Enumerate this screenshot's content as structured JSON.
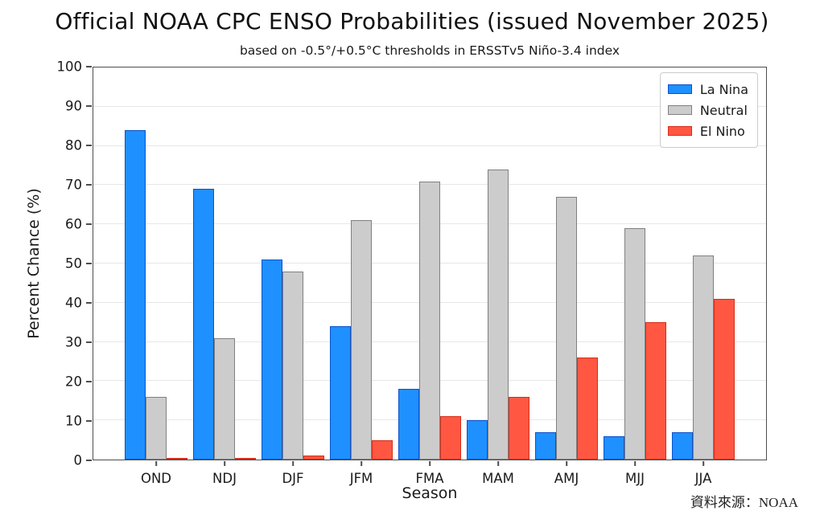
{
  "source_note": "資料來源：NOAA",
  "chart_data": {
    "type": "bar",
    "title": "Official NOAA CPC ENSO Probabilities (issued November 2025)",
    "subtitle": "based on -0.5°/+0.5°C thresholds in ERSSTv5 Niño-3.4 index",
    "xlabel": "Season",
    "ylabel": "Percent Chance (%)",
    "ylim": [
      0,
      100
    ],
    "ytick_step": 10,
    "grid": true,
    "legend_position": "upper right",
    "categories": [
      "OND",
      "NDJ",
      "DJF",
      "JFM",
      "FMA",
      "MAM",
      "AMJ",
      "MJJ",
      "JJA"
    ],
    "series": [
      {
        "name": "La Nina",
        "color": "#1E90FF",
        "edge": "#0d52cc",
        "values": [
          84,
          69,
          51,
          34,
          18,
          10,
          7,
          6,
          7
        ]
      },
      {
        "name": "Neutral",
        "color": "#cccccc",
        "edge": "#808080",
        "values": [
          16,
          31,
          48,
          61,
          71,
          74,
          67,
          59,
          52
        ]
      },
      {
        "name": "El Nino",
        "color": "#ff5742",
        "edge": "#d42f1a",
        "values": [
          0,
          0,
          1,
          5,
          11,
          16,
          26,
          35,
          41
        ]
      }
    ]
  }
}
